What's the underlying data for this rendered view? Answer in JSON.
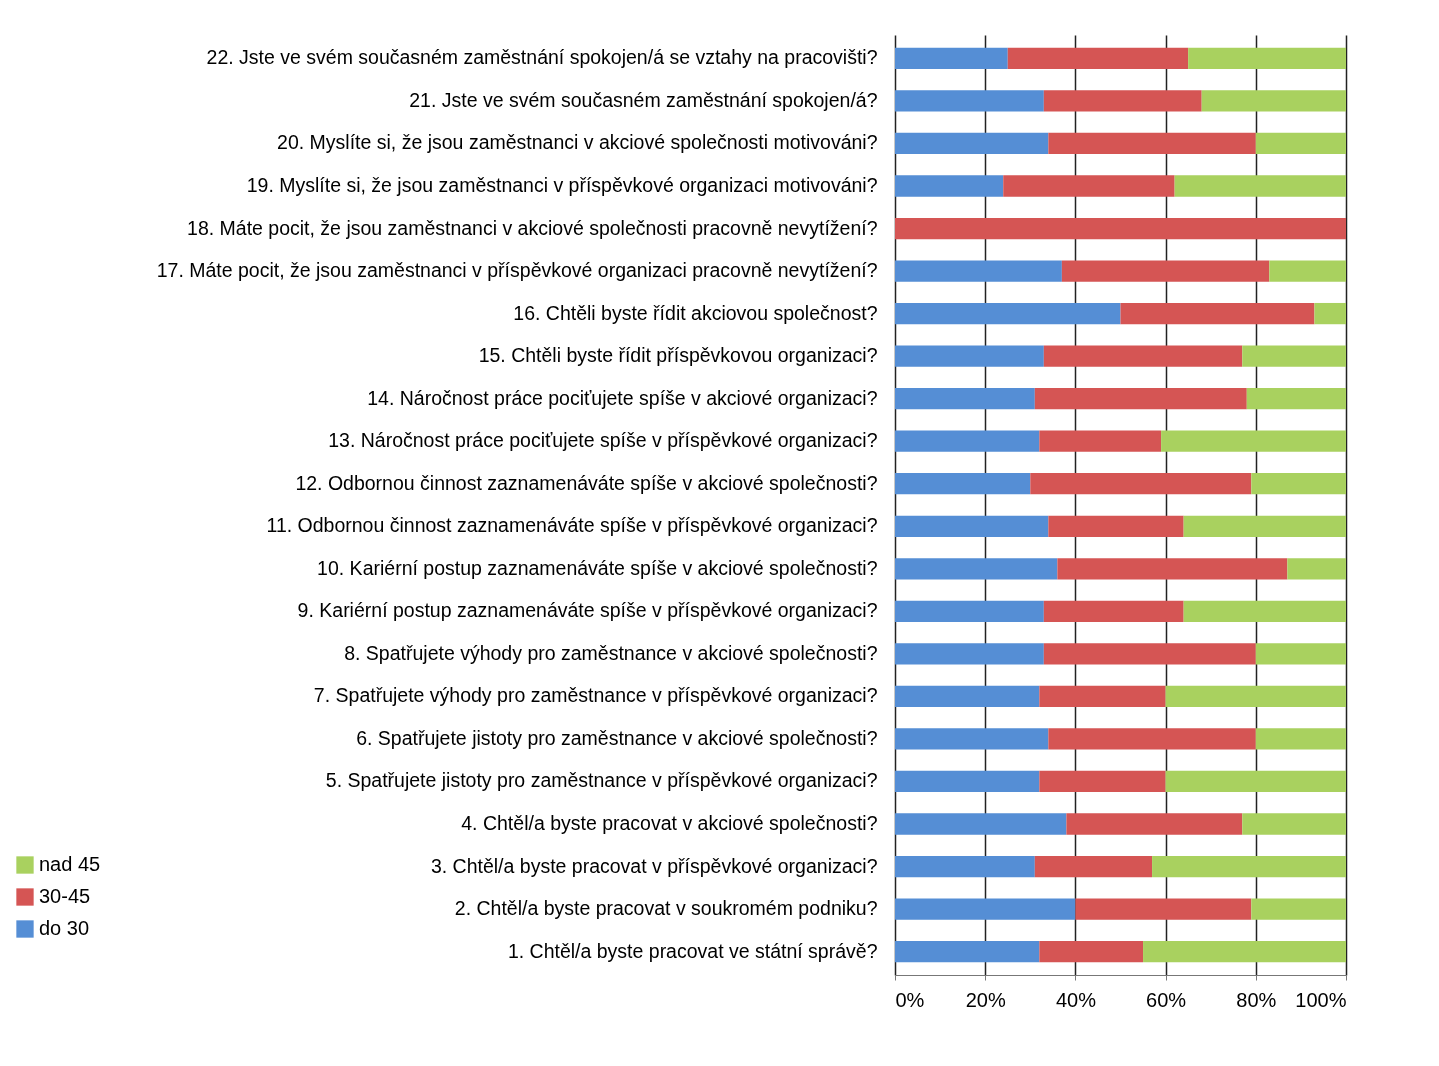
{
  "chart_data": {
    "type": "bar",
    "orientation": "horizontal",
    "stacked": true,
    "categories": [
      "22. Jste ve svém současném zaměstnání spokojen/á se vztahy na pracovišti?",
      "21. Jste ve svém současném zaměstnání spokojen/á?",
      "20. Myslíte si, že jsou zaměstnanci v akciové společnosti motivováni?",
      "19. Myslíte si, že jsou zaměstnanci v příspěvkové organizaci motivováni?",
      "18. Máte pocit, že jsou zaměstnanci v akciové společnosti pracovně nevytížení?",
      "17. Máte pocit, že jsou zaměstnanci v příspěvkové organizaci pracovně nevytížení?",
      "16. Chtěli byste řídit akciovou společnost?",
      "15. Chtěli byste řídit příspěvkovou organizaci?",
      "14. Náročnost práce pociťujete spíše v akciové organizaci?",
      "13. Náročnost práce pociťujete spíše v příspěvkové organizaci?",
      "12. Odbornou činnost zaznamenáváte spíše v akciové společnosti?",
      "11. Odbornou činnost zaznamenáváte spíše v příspěvkové organizaci?",
      "10. Kariérní postup zaznamenáváte spíše v akciové společnosti?",
      "9. Kariérní postup zaznamenáváte spíše v příspěvkové organizaci?",
      "8. Spatřujete výhody pro zaměstnance v akciové společnosti?",
      "7. Spatřujete výhody pro zaměstnance v příspěvkové organizaci?",
      "6. Spatřujete jistoty pro zaměstnance v akciové společnosti?",
      "5. Spatřujete jistoty pro zaměstnance v příspěvkové organizaci?",
      "4. Chtěl/a byste pracovat v akciové společnosti?",
      "3. Chtěl/a byste pracovat v příspěvkové organizaci?",
      "2. Chtěl/a byste pracovat v soukromém podniku?",
      "1. Chtěl/a byste pracovat ve státní správě?"
    ],
    "series": [
      {
        "name": "do 30",
        "color": "#558ed5",
        "values": [
          25,
          33,
          34,
          24,
          0,
          37,
          50,
          33,
          31,
          32,
          30,
          34,
          36,
          33,
          33,
          32,
          34,
          32,
          38,
          31,
          40,
          32
        ]
      },
      {
        "name": "30-45",
        "color": "#d55554",
        "values": [
          40,
          35,
          46,
          38,
          100,
          46,
          43,
          44,
          47,
          27,
          49,
          30,
          51,
          31,
          47,
          28,
          46,
          28,
          39,
          26,
          39,
          23
        ]
      },
      {
        "name": "nad 45",
        "color": "#a9d15f",
        "values": [
          35,
          32,
          20,
          38,
          0,
          17,
          7,
          23,
          22,
          41,
          21,
          36,
          13,
          36,
          20,
          40,
          20,
          40,
          23,
          43,
          21,
          45
        ]
      }
    ],
    "xlim": [
      0,
      100
    ],
    "xticks": [
      {
        "value": 0,
        "label": "0%"
      },
      {
        "value": 20,
        "label": "20%"
      },
      {
        "value": 40,
        "label": "40%"
      },
      {
        "value": 60,
        "label": "60%"
      },
      {
        "value": 80,
        "label": "80%"
      },
      {
        "value": 100,
        "label": "100%"
      }
    ],
    "grid": "x",
    "legend": "bottom left"
  }
}
